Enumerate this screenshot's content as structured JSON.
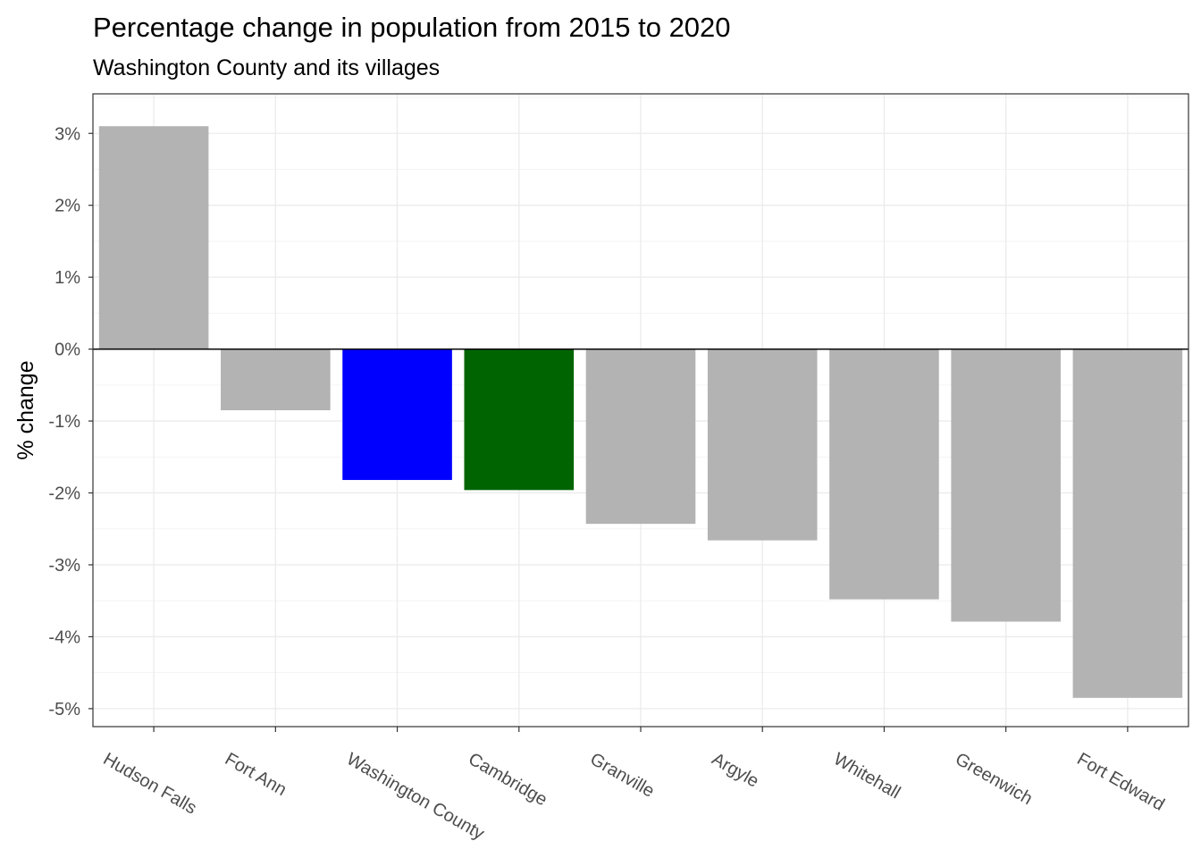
{
  "chart_data": {
    "type": "bar",
    "title": "Percentage change in population from 2015 to 2020",
    "subtitle": "Washington County and its villages",
    "xlabel": "",
    "ylabel": "% change",
    "categories": [
      "Hudson Falls",
      "Fort Ann",
      "Washington County",
      "Cambridge",
      "Granville",
      "Argyle",
      "Whitehall",
      "Greenwich",
      "Fort Edward"
    ],
    "values": [
      3.1,
      -0.85,
      -1.82,
      -1.96,
      -2.43,
      -2.66,
      -3.48,
      -3.79,
      -4.85
    ],
    "colors": [
      "#b3b3b3",
      "#b3b3b3",
      "#0000ff",
      "#006400",
      "#b3b3b3",
      "#b3b3b3",
      "#b3b3b3",
      "#b3b3b3",
      "#b3b3b3"
    ],
    "ylim": [
      -5.25,
      3.55
    ],
    "yticks": [
      3,
      2,
      1,
      0,
      -1,
      -2,
      -3,
      -4,
      -5
    ],
    "ytick_labels": [
      "3%",
      "2%",
      "1%",
      "0%",
      "-1%",
      "-2%",
      "-3%",
      "-4%",
      "-5%"
    ],
    "zero_line": true,
    "grid": true,
    "legend": "none"
  }
}
